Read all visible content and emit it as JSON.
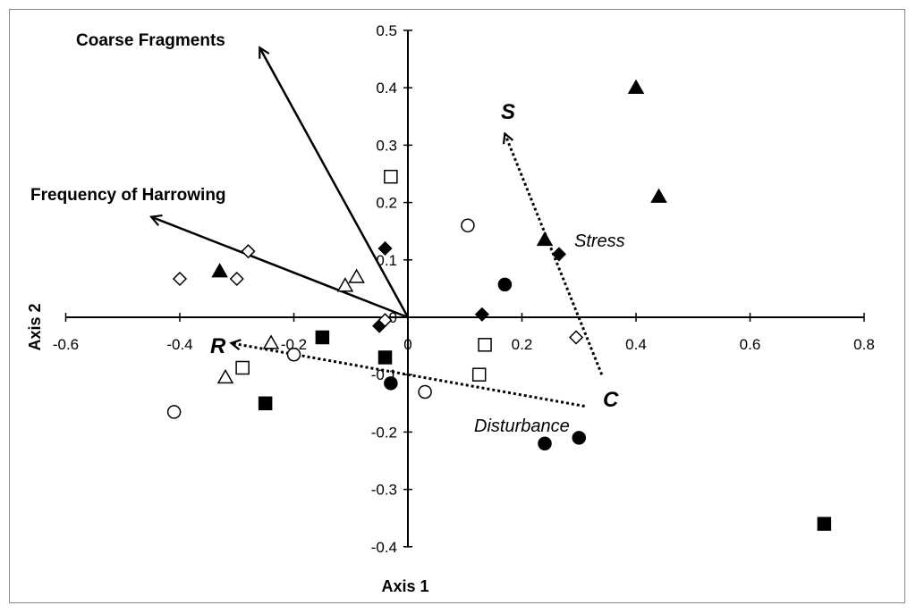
{
  "chart_data": {
    "type": "scatter",
    "title": "",
    "xlabel": "Axis 1",
    "ylabel": "Axis 2",
    "xlim": [
      -0.6,
      0.8
    ],
    "ylim": [
      -0.4,
      0.5
    ],
    "x_ticks": [
      "-0.6",
      "-0.4",
      "-0.2",
      "0",
      "0.2",
      "0.4",
      "0.6",
      "0.8"
    ],
    "y_ticks": [
      "0.5",
      "0.4",
      "0.3",
      "0.2",
      "0.1",
      "0",
      "-0.1",
      "-0.2",
      "-0.3",
      "-0.4"
    ],
    "x_tick_values": [
      -0.6,
      -0.4,
      -0.2,
      0,
      0.2,
      0.4,
      0.6,
      0.8
    ],
    "y_tick_values": [
      0.5,
      0.4,
      0.3,
      0.2,
      0.1,
      0,
      -0.1,
      -0.2,
      -0.3,
      -0.4
    ],
    "grid": false,
    "legend": "none",
    "series": [
      {
        "marker": "triangle",
        "filled": true,
        "points": [
          [
            0.4,
            0.4
          ],
          [
            0.44,
            0.21
          ],
          [
            0.24,
            0.135
          ],
          [
            -0.33,
            0.08
          ]
        ]
      },
      {
        "marker": "triangle",
        "filled": false,
        "points": [
          [
            -0.09,
            0.07
          ],
          [
            -0.11,
            0.055
          ],
          [
            -0.24,
            -0.045
          ],
          [
            -0.32,
            -0.105
          ]
        ]
      },
      {
        "marker": "diamond",
        "filled": true,
        "points": [
          [
            -0.04,
            0.12
          ],
          [
            0.265,
            0.11
          ],
          [
            0.13,
            0.005
          ],
          [
            -0.05,
            -0.015
          ]
        ]
      },
      {
        "marker": "diamond",
        "filled": false,
        "points": [
          [
            -0.28,
            0.115
          ],
          [
            -0.4,
            0.067
          ],
          [
            -0.3,
            0.067
          ],
          [
            0.295,
            -0.035
          ],
          [
            -0.04,
            -0.005
          ]
        ]
      },
      {
        "marker": "circle",
        "filled": true,
        "points": [
          [
            0.17,
            0.057
          ],
          [
            -0.03,
            -0.115
          ],
          [
            0.24,
            -0.22
          ],
          [
            0.3,
            -0.21
          ]
        ]
      },
      {
        "marker": "circle",
        "filled": false,
        "points": [
          [
            0.105,
            0.16
          ],
          [
            -0.2,
            -0.065
          ],
          [
            0.03,
            -0.13
          ],
          [
            -0.41,
            -0.165
          ]
        ]
      },
      {
        "marker": "square",
        "filled": true,
        "points": [
          [
            -0.15,
            -0.035
          ],
          [
            -0.04,
            -0.07
          ],
          [
            -0.25,
            -0.15
          ],
          [
            0.73,
            -0.36
          ]
        ]
      },
      {
        "marker": "square",
        "filled": false,
        "points": [
          [
            -0.03,
            0.245
          ],
          [
            0.135,
            -0.048
          ],
          [
            -0.29,
            -0.088
          ],
          [
            0.125,
            -0.1
          ]
        ]
      }
    ],
    "vectors": [
      {
        "label": "Coarse Fragments",
        "style": "solid",
        "from": [
          0,
          0
        ],
        "to": [
          -0.26,
          0.47
        ]
      },
      {
        "label": "Frequency of Harrowing",
        "style": "solid",
        "from": [
          0,
          0
        ],
        "to": [
          -0.45,
          0.175
        ]
      }
    ],
    "csr_vectors": [
      {
        "label": "S",
        "from_label": "C",
        "style": "dotted",
        "from": [
          0.34,
          -0.1
        ],
        "to": [
          0.17,
          0.32
        ]
      },
      {
        "label": "R",
        "from_label": "",
        "style": "dotted",
        "from": [
          0.31,
          -0.155
        ],
        "to": [
          -0.31,
          -0.045
        ]
      }
    ],
    "annotations": [
      "Stress",
      "Disturbance"
    ],
    "csr_labels": {
      "s": "S",
      "c": "C",
      "r": "R"
    }
  }
}
